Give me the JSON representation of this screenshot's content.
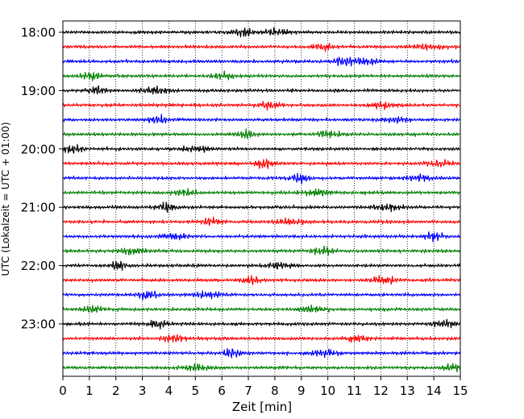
{
  "chart_data": {
    "type": "line",
    "title": "",
    "xlabel": "Zeit  [min]",
    "ylabel": "UTC (Lokalzeit = UTC + 01:00)",
    "xlim": [
      0,
      15
    ],
    "x_ticks": [
      "0",
      "1",
      "2",
      "3",
      "4",
      "5",
      "6",
      "7",
      "8",
      "9",
      "10",
      "11",
      "12",
      "13",
      "14",
      "15"
    ],
    "y_ticks": [
      {
        "label": "18:00",
        "trace_index": 0
      },
      {
        "label": "19:00",
        "trace_index": 4
      },
      {
        "label": "20:00",
        "trace_index": 8
      },
      {
        "label": "21:00",
        "trace_index": 12
      },
      {
        "label": "22:00",
        "trace_index": 16
      },
      {
        "label": "23:00",
        "trace_index": 20
      }
    ],
    "grid": "vertical-dotted",
    "trace_interval_minutes": 15,
    "trace_count": 24,
    "series_colors": [
      "#000000",
      "#ff0000",
      "#0000ff",
      "#008000"
    ],
    "series": [
      {
        "start": "18:00",
        "color": "#000000",
        "bursts": [
          6.8,
          8.1
        ]
      },
      {
        "start": "18:15",
        "color": "#ff0000",
        "bursts": [
          9.8,
          13.8
        ]
      },
      {
        "start": "18:30",
        "color": "#0000ff",
        "bursts": [
          10.6,
          11.4
        ]
      },
      {
        "start": "18:45",
        "color": "#008000",
        "bursts": [
          1.0,
          6.0
        ]
      },
      {
        "start": "19:00",
        "color": "#000000",
        "bursts": [
          1.3,
          3.5
        ]
      },
      {
        "start": "19:15",
        "color": "#ff0000",
        "bursts": [
          7.8,
          12.0
        ]
      },
      {
        "start": "19:30",
        "color": "#0000ff",
        "bursts": [
          3.6,
          12.6
        ]
      },
      {
        "start": "19:45",
        "color": "#008000",
        "bursts": [
          6.9,
          10.0
        ]
      },
      {
        "start": "20:00",
        "color": "#000000",
        "bursts": [
          0.4,
          5.0
        ]
      },
      {
        "start": "20:15",
        "color": "#ff0000",
        "bursts": [
          7.6,
          14.2
        ]
      },
      {
        "start": "20:30",
        "color": "#0000ff",
        "bursts": [
          8.9,
          13.4
        ]
      },
      {
        "start": "20:45",
        "color": "#008000",
        "bursts": [
          4.6,
          9.6
        ]
      },
      {
        "start": "21:00",
        "color": "#000000",
        "bursts": [
          3.9,
          12.3
        ]
      },
      {
        "start": "21:15",
        "color": "#ff0000",
        "bursts": [
          5.6,
          8.6
        ]
      },
      {
        "start": "21:30",
        "color": "#0000ff",
        "bursts": [
          14.0,
          4.3
        ]
      },
      {
        "start": "21:45",
        "color": "#008000",
        "bursts": [
          9.8,
          2.6
        ]
      },
      {
        "start": "22:00",
        "color": "#000000",
        "bursts": [
          2.1,
          8.2
        ]
      },
      {
        "start": "22:15",
        "color": "#ff0000",
        "bursts": [
          7.0,
          12.1
        ]
      },
      {
        "start": "22:30",
        "color": "#0000ff",
        "bursts": [
          3.2,
          5.5
        ]
      },
      {
        "start": "22:45",
        "color": "#008000",
        "bursts": [
          1.1,
          9.4
        ]
      },
      {
        "start": "23:00",
        "color": "#000000",
        "bursts": [
          3.6,
          14.4
        ]
      },
      {
        "start": "23:15",
        "color": "#ff0000",
        "bursts": [
          11.1,
          4.2
        ]
      },
      {
        "start": "23:30",
        "color": "#0000ff",
        "bursts": [
          6.4,
          9.9
        ]
      },
      {
        "start": "23:45",
        "color": "#008000",
        "bursts": [
          14.7,
          5.0
        ]
      }
    ]
  }
}
